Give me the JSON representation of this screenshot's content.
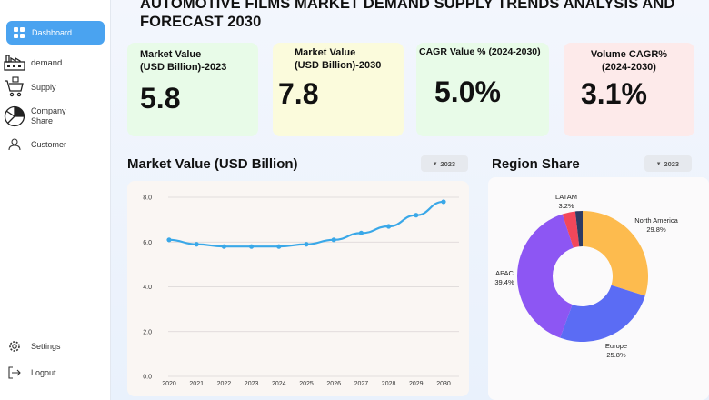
{
  "sidebar": {
    "items": [
      {
        "label": "Dashboard"
      },
      {
        "label": "demand"
      },
      {
        "label": "Supply"
      },
      {
        "label": "Company Share"
      },
      {
        "label": "Customer"
      }
    ],
    "bottom": [
      {
        "label": "Settings"
      },
      {
        "label": "Logout"
      }
    ]
  },
  "header": {
    "title": "AUTOMOTIVE FILMS MARKET DEMAND SUPPLY TRENDS ANALYSIS AND FORECAST 2030"
  },
  "kpis": [
    {
      "label_line1": "Market Value",
      "label_line2": "(USD Billion)-2023",
      "value": "5.8",
      "color": "#e8fbe8"
    },
    {
      "label_line1": "Market Value",
      "label_line2": "(USD Billion)-2030",
      "value": "7.8",
      "color": "#fbfbdc"
    },
    {
      "label_line1": "CAGR  Value % (2024-2030)",
      "label_line2": "",
      "value": "5.0%",
      "color": "#e8fbe8"
    },
    {
      "label_line1": "Volume CAGR%",
      "label_line2": "(2024-2030)",
      "value": "3.1%",
      "color": "#fdeaea"
    }
  ],
  "line_section": {
    "title": "Market Value (USD Billion)",
    "year": "2023"
  },
  "pie_section": {
    "title": "Region Share",
    "year": "2023"
  },
  "chart_data": [
    {
      "type": "line",
      "x": [
        "2020",
        "2021",
        "2022",
        "2023",
        "2024",
        "2025",
        "2026",
        "2027",
        "2028",
        "2029",
        "2030"
      ],
      "series": [
        {
          "values": [
            6.1,
            5.9,
            5.8,
            5.8,
            5.8,
            5.9,
            6.1,
            6.4,
            6.7,
            7.2,
            7.8
          ]
        }
      ],
      "y_ticks": [
        "0.0",
        "2.0",
        "4.0",
        "6.0",
        "8.0"
      ],
      "ylim": [
        0,
        8
      ],
      "grid": true,
      "color": "#3aa8e8"
    },
    {
      "type": "pie",
      "donut": true,
      "slices": [
        {
          "label": "North America",
          "value": 29.8,
          "display": "29.8%",
          "color": "#fdbb4e"
        },
        {
          "label": "Europe",
          "value": 25.8,
          "display": "25.8%",
          "color": "#5b6cf4"
        },
        {
          "label": "APAC",
          "value": 39.4,
          "display": "39.4%",
          "color": "#8d56f3"
        },
        {
          "label": "LATAM",
          "value": 3.2,
          "display": "3.2%",
          "color": "#f2475a"
        },
        {
          "label": "",
          "value": 1.8,
          "display": "",
          "color": "#2e3b63"
        }
      ]
    }
  ]
}
